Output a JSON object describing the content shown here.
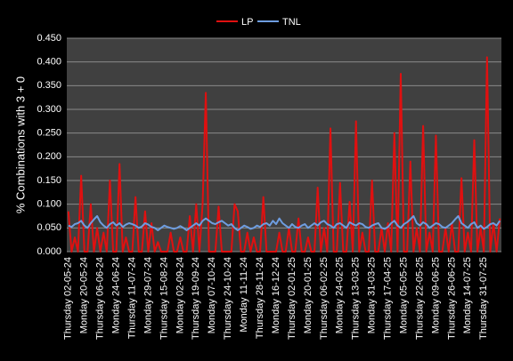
{
  "chart_data": {
    "type": "line",
    "ylabel": "% Combinations with 3 + 0",
    "ylim": [
      0,
      0.45
    ],
    "yticks": [
      {
        "value": 0,
        "label": "0.000"
      },
      {
        "value": 0.05,
        "label": "0.050"
      },
      {
        "value": 0.1,
        "label": "0.100"
      },
      {
        "value": 0.15,
        "label": "0.150"
      },
      {
        "value": 0.2,
        "label": "0.200"
      },
      {
        "value": 0.25,
        "label": "0.250"
      },
      {
        "value": 0.3,
        "label": "0.300"
      },
      {
        "value": 0.35,
        "label": "0.350"
      },
      {
        "value": 0.4,
        "label": "0.400"
      },
      {
        "value": 0.45,
        "label": "0.450"
      }
    ],
    "grid": true,
    "legend": "top",
    "categories": [
      "Thursday  02-05-24",
      null,
      null,
      null,
      null,
      "Monday  20-05-24",
      null,
      null,
      null,
      null,
      "Thursday  06-06-24",
      null,
      null,
      null,
      null,
      "Monday  24-06-24",
      null,
      null,
      null,
      null,
      "Thursday  11-07-24",
      null,
      null,
      null,
      null,
      "Monday  29-07-24",
      null,
      null,
      null,
      null,
      "Thursday  15-08-24",
      null,
      null,
      null,
      null,
      "Monday  02-09-24",
      null,
      null,
      null,
      null,
      "Thursday  19-09-24",
      null,
      null,
      null,
      null,
      "Monday  07-10-24",
      null,
      null,
      null,
      null,
      "Thursday  24-10-24",
      null,
      null,
      null,
      null,
      "Monday  11-11-24",
      null,
      null,
      null,
      null,
      "Thursday  28-11-24",
      null,
      null,
      null,
      null,
      "Monday  16-12-24",
      null,
      null,
      null,
      null,
      "Thursday  02-01-25",
      null,
      null,
      null,
      null,
      "Monday  20-01-25",
      null,
      null,
      null,
      null,
      "Thursday  06-02-25",
      null,
      null,
      null,
      null,
      "Monday  24-02-25",
      null,
      null,
      null,
      null,
      "Thursday  13-03-25",
      null,
      null,
      null,
      null,
      "Monday  31-03-25",
      null,
      null,
      null,
      null,
      "Thursday  17-04-25",
      null,
      null,
      null,
      null,
      "Monday  05-05-25",
      null,
      null,
      null,
      null,
      "Thursday  22-05-25",
      null,
      null,
      null,
      null,
      "Monday  09-06-25",
      null,
      null,
      null,
      null,
      "Thursday  26-06-25",
      null,
      null,
      null,
      null,
      "Monday  14-07-25",
      null,
      null,
      null,
      null,
      "Thursday  31-07-25",
      null,
      null,
      null,
      null,
      null
    ],
    "series": [
      {
        "name": "LP",
        "color": "#e01010",
        "values": [
          0.085,
          0,
          0.03,
          0,
          0.16,
          0,
          0,
          0.1,
          0,
          0.05,
          0,
          0.04,
          0,
          0.15,
          0,
          0,
          0.185,
          0,
          0.03,
          0,
          0,
          0.115,
          0,
          0,
          0.085,
          0,
          0.06,
          0,
          0.02,
          0,
          0,
          0,
          0.04,
          0,
          0,
          0.03,
          0,
          0,
          0.075,
          0,
          0.1,
          0,
          0.1,
          0.335,
          0,
          0,
          0,
          0.095,
          0,
          0,
          0,
          0,
          0.1,
          0.085,
          0,
          0,
          0.04,
          0,
          0.03,
          0,
          0,
          0.115,
          0,
          0,
          0,
          0,
          0.04,
          0,
          0,
          0.05,
          0,
          0,
          0.07,
          0,
          0,
          0.03,
          0,
          0,
          0.135,
          0,
          0.05,
          0,
          0.26,
          0,
          0,
          0.145,
          0,
          0,
          0.105,
          0,
          0.275,
          0,
          0.04,
          0,
          0,
          0.15,
          0,
          0,
          0.05,
          0,
          0.06,
          0,
          0.25,
          0,
          0.375,
          0,
          0,
          0.19,
          0,
          0.05,
          0,
          0.265,
          0,
          0.04,
          0,
          0.245,
          0,
          0,
          0.05,
          0,
          0.06,
          0,
          0,
          0.155,
          0,
          0.04,
          0,
          0.235,
          0,
          0.05,
          0,
          0.41,
          0,
          0.06,
          0,
          0.07
        ]
      },
      {
        "name": "TNL",
        "color": "#6e9de0",
        "values": [
          0.055,
          0.052,
          0.058,
          0.06,
          0.065,
          0.055,
          0.05,
          0.06,
          0.068,
          0.075,
          0.062,
          0.055,
          0.05,
          0.058,
          0.062,
          0.055,
          0.06,
          0.052,
          0.057,
          0.06,
          0.058,
          0.055,
          0.05,
          0.053,
          0.06,
          0.057,
          0.052,
          0.05,
          0.045,
          0.05,
          0.055,
          0.052,
          0.05,
          0.048,
          0.05,
          0.054,
          0.05,
          0.045,
          0.05,
          0.055,
          0.06,
          0.055,
          0.065,
          0.07,
          0.065,
          0.06,
          0.058,
          0.062,
          0.065,
          0.06,
          0.055,
          0.058,
          0.05,
          0.045,
          0.05,
          0.055,
          0.052,
          0.048,
          0.05,
          0.055,
          0.052,
          0.058,
          0.06,
          0.055,
          0.065,
          0.058,
          0.07,
          0.06,
          0.055,
          0.05,
          0.058,
          0.052,
          0.05,
          0.055,
          0.058,
          0.05,
          0.055,
          0.06,
          0.055,
          0.062,
          0.065,
          0.058,
          0.055,
          0.05,
          0.058,
          0.06,
          0.055,
          0.05,
          0.062,
          0.058,
          0.055,
          0.06,
          0.058,
          0.052,
          0.05,
          0.055,
          0.058,
          0.06,
          0.05,
          0.048,
          0.052,
          0.06,
          0.065,
          0.055,
          0.05,
          0.058,
          0.062,
          0.068,
          0.075,
          0.06,
          0.055,
          0.062,
          0.058,
          0.05,
          0.055,
          0.06,
          0.058,
          0.052,
          0.05,
          0.055,
          0.06,
          0.068,
          0.075,
          0.06,
          0.055,
          0.05,
          0.058,
          0.062,
          0.05,
          0.055,
          0.048,
          0.052,
          0.058,
          0.06,
          0.055,
          0.065
        ]
      }
    ]
  }
}
